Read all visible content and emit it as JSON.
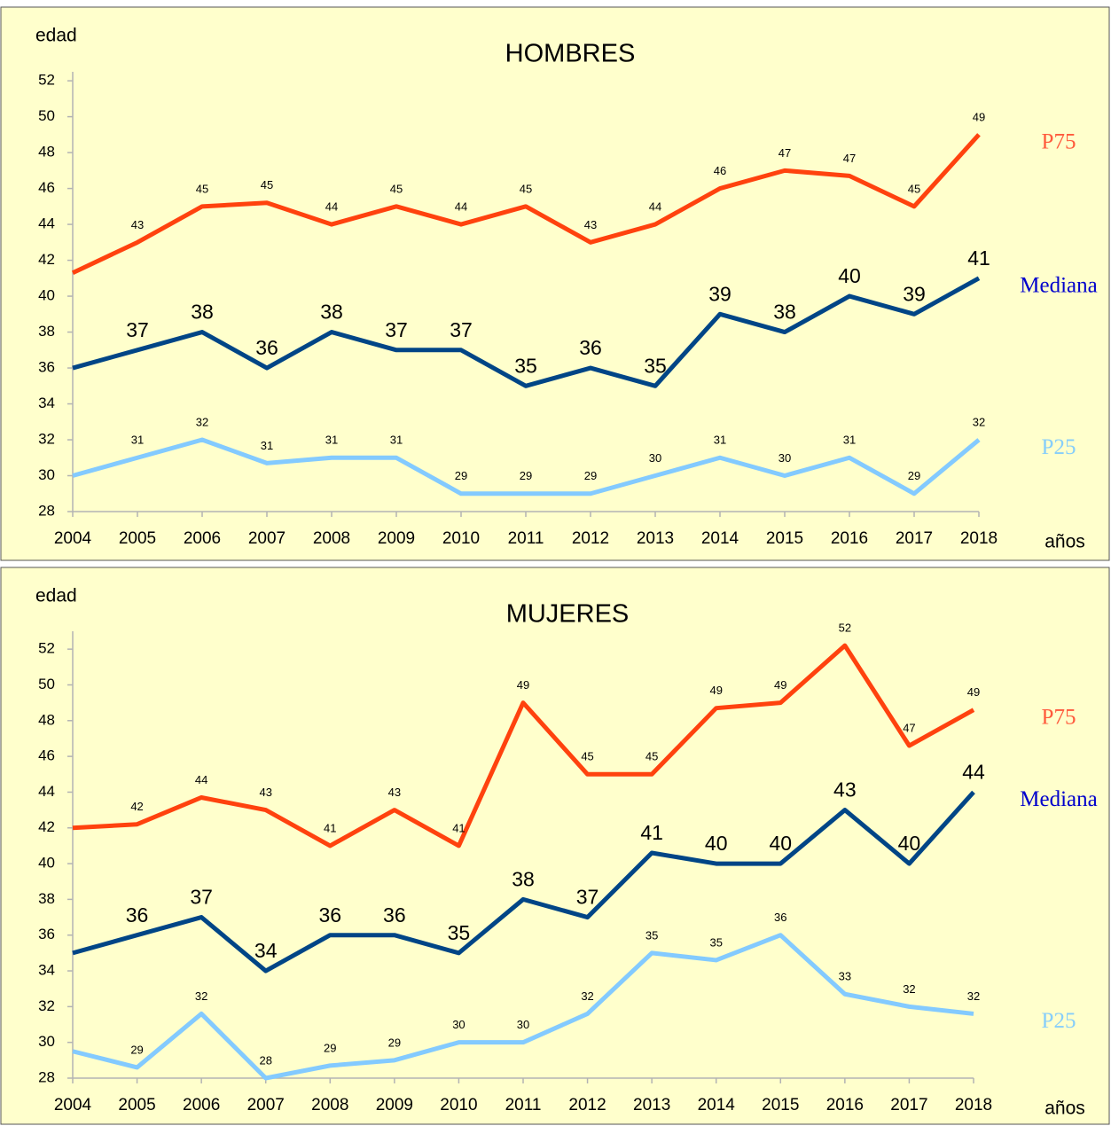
{
  "chart_data": [
    {
      "type": "line",
      "title": "HOMBRES",
      "y_label": "edad",
      "x_label": "años",
      "categories": [
        "2004",
        "2005",
        "2006",
        "2007",
        "2008",
        "2009",
        "2010",
        "2011",
        "2012",
        "2013",
        "2014",
        "2015",
        "2016",
        "2017",
        "2018"
      ],
      "ylim": [
        28,
        52.5
      ],
      "yticks": [
        28,
        30,
        32,
        34,
        36,
        38,
        40,
        42,
        44,
        46,
        48,
        50,
        52
      ],
      "series": [
        {
          "name": "P75",
          "color": "#ff420e",
          "label_color": "#ff5a3c",
          "values": [
            41.3,
            43,
            45,
            45.2,
            44,
            45,
            44,
            45,
            43,
            44,
            46,
            47,
            46.7,
            45,
            49
          ],
          "value_labels": [
            null,
            "43",
            "45",
            "45",
            "44",
            "45",
            "44",
            "45",
            "43",
            "44",
            "46",
            "47",
            "47",
            "45",
            "49"
          ]
        },
        {
          "name": "Mediana",
          "color": "#004586",
          "label_color": "#0000cc",
          "values": [
            36,
            37,
            38,
            36,
            38,
            37,
            37,
            35,
            36,
            35,
            39,
            38,
            40,
            39,
            41
          ],
          "value_labels": [
            null,
            "37",
            "38",
            "36",
            "38",
            "37",
            "37",
            "35",
            "36",
            "35",
            "39",
            "38",
            "40",
            "39",
            "41"
          ]
        },
        {
          "name": "P25",
          "color": "#83caff",
          "label_color": "#87cefa",
          "values": [
            30,
            31,
            32,
            30.7,
            31,
            31,
            29,
            29,
            29,
            30,
            31,
            30,
            31,
            29,
            32
          ],
          "value_labels": [
            null,
            "31",
            "32",
            "31",
            "31",
            "31",
            "29",
            "29",
            "29",
            "30",
            "31",
            "30",
            "31",
            "29",
            "32"
          ]
        }
      ]
    },
    {
      "type": "line",
      "title": "MUJERES",
      "y_label": "edad",
      "x_label": "años",
      "categories": [
        "2004",
        "2005",
        "2006",
        "2007",
        "2008",
        "2009",
        "2010",
        "2011",
        "2012",
        "2013",
        "2014",
        "2015",
        "2016",
        "2017",
        "2018"
      ],
      "ylim": [
        28,
        53
      ],
      "yticks": [
        28,
        30,
        32,
        34,
        36,
        38,
        40,
        42,
        44,
        46,
        48,
        50,
        52
      ],
      "series": [
        {
          "name": "P75",
          "color": "#ff420e",
          "label_color": "#ff5a3c",
          "values": [
            42,
            42.2,
            43.7,
            43,
            41,
            43,
            41,
            49,
            45,
            45,
            48.7,
            49,
            52.2,
            46.6,
            48.6
          ],
          "value_labels": [
            null,
            "42",
            "44",
            "43",
            "41",
            "43",
            "41",
            "49",
            "45",
            "45",
            "49",
            "49",
            "52",
            "47",
            "49"
          ]
        },
        {
          "name": "Mediana",
          "color": "#004586",
          "label_color": "#0000cc",
          "values": [
            35,
            36,
            37,
            34,
            36,
            36,
            35,
            38,
            37,
            40.6,
            40,
            40,
            43,
            40,
            44
          ],
          "value_labels": [
            null,
            "36",
            "37",
            "34",
            "36",
            "36",
            "35",
            "38",
            "37",
            "41",
            "40",
            "40",
            "43",
            "40",
            "44"
          ]
        },
        {
          "name": "P25",
          "color": "#83caff",
          "label_color": "#87cefa",
          "values": [
            29.5,
            28.6,
            31.6,
            28,
            28.7,
            29,
            30,
            30,
            31.6,
            35,
            34.6,
            36,
            32.7,
            32,
            31.6
          ],
          "value_labels": [
            null,
            "29",
            "32",
            "28",
            "29",
            "29",
            "30",
            "30",
            "32",
            "35",
            "35",
            "36",
            "33",
            "32",
            "32"
          ]
        }
      ]
    }
  ]
}
